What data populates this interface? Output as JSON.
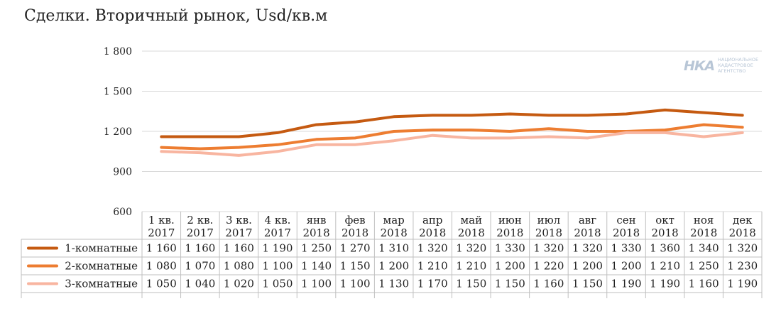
{
  "chart_data": {
    "type": "line",
    "title": "Сделки. Вторичный рынок, Usd/кв.м",
    "xlabel": "",
    "ylabel": "",
    "ylim": [
      600,
      1800
    ],
    "y_ticks": [
      "1 800",
      "1 500",
      "1 200",
      "900",
      "600"
    ],
    "y_tick_values": [
      1800,
      1500,
      1200,
      900,
      600
    ],
    "grid": true,
    "legend_placement": "table-left",
    "categories": [
      [
        "1 кв.",
        "2017"
      ],
      [
        "2 кв.",
        "2017"
      ],
      [
        "3 кв.",
        "2017"
      ],
      [
        "4 кв.",
        "2017"
      ],
      [
        "янв",
        "2018"
      ],
      [
        "фев",
        "2018"
      ],
      [
        "мар",
        "2018"
      ],
      [
        "апр",
        "2018"
      ],
      [
        "май",
        "2018"
      ],
      [
        "июн",
        "2018"
      ],
      [
        "июл",
        "2018"
      ],
      [
        "авг",
        "2018"
      ],
      [
        "сен",
        "2018"
      ],
      [
        "окт",
        "2018"
      ],
      [
        "ноя",
        "2018"
      ],
      [
        "дек",
        "2018"
      ]
    ],
    "series": [
      {
        "name": "1-комнатные",
        "color": "#c55a11",
        "values": [
          1160,
          1160,
          1160,
          1190,
          1250,
          1270,
          1310,
          1320,
          1320,
          1330,
          1320,
          1320,
          1330,
          1360,
          1340,
          1320
        ],
        "labels": [
          "1 160",
          "1 160",
          "1 160",
          "1 190",
          "1 250",
          "1 270",
          "1 310",
          "1 320",
          "1 320",
          "1 330",
          "1 320",
          "1 320",
          "1 330",
          "1 360",
          "1 340",
          "1 320"
        ]
      },
      {
        "name": "2-комнатные",
        "color": "#ed7d31",
        "values": [
          1080,
          1070,
          1080,
          1100,
          1140,
          1150,
          1200,
          1210,
          1210,
          1200,
          1220,
          1200,
          1200,
          1210,
          1250,
          1230
        ],
        "labels": [
          "1 080",
          "1 070",
          "1 080",
          "1 100",
          "1 140",
          "1 150",
          "1 200",
          "1 210",
          "1 210",
          "1 200",
          "1 220",
          "1 200",
          "1 200",
          "1 210",
          "1 250",
          "1 230"
        ]
      },
      {
        "name": "3-комнатные",
        "color": "#f8b5a0",
        "values": [
          1050,
          1040,
          1020,
          1050,
          1100,
          1100,
          1130,
          1170,
          1150,
          1150,
          1160,
          1150,
          1190,
          1190,
          1160,
          1190
        ],
        "labels": [
          "1 050",
          "1 040",
          "1 020",
          "1 050",
          "1 100",
          "1 100",
          "1 130",
          "1 170",
          "1 150",
          "1 150",
          "1 160",
          "1 150",
          "1 190",
          "1 190",
          "1 160",
          "1 190"
        ]
      }
    ],
    "colors": {
      "grid": "#d9d9d9",
      "table_border": "#bfbfbf"
    }
  },
  "logo": {
    "mark": "НКА",
    "lines": [
      "НАЦИОНАЛЬНОЕ",
      "КАДАСТРОВОЕ",
      "АГЕНТСТВО"
    ]
  }
}
